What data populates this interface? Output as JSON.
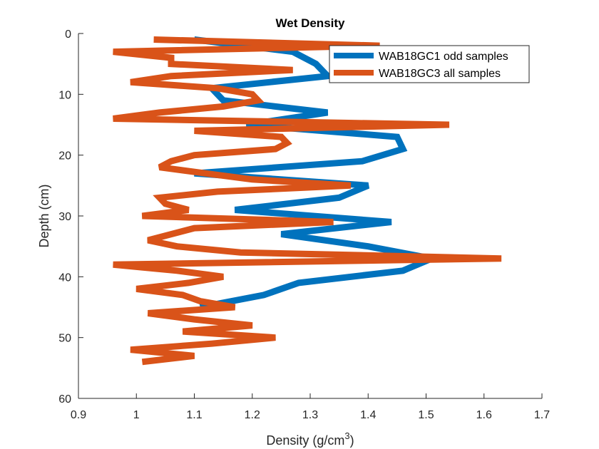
{
  "chart_data": {
    "type": "line",
    "title": "Wet Density",
    "xlabel": "Density (g/cm",
    "xlabel_sup": "3",
    "xlabel_suffix": ")",
    "ylabel": "Depth (cm)",
    "xlim": [
      0.9,
      1.7
    ],
    "ylim": [
      0,
      60
    ],
    "y_reversed": true,
    "xticks": [
      0.9,
      1.0,
      1.1,
      1.2,
      1.3,
      1.4,
      1.5,
      1.6,
      1.7
    ],
    "xtick_labels": [
      "0.9",
      "1",
      "1.1",
      "1.2",
      "1.3",
      "1.4",
      "1.5",
      "1.6",
      "1.7"
    ],
    "yticks": [
      0,
      10,
      20,
      30,
      40,
      50,
      60
    ],
    "ytick_labels": [
      "0",
      "10",
      "20",
      "30",
      "40",
      "50",
      "60"
    ],
    "grid": false,
    "legend_position": "top-right",
    "series": [
      {
        "name": "WAB18GC1 odd samples",
        "color": "#0072BD",
        "points": [
          [
            1.1,
            1
          ],
          [
            1.27,
            3
          ],
          [
            1.31,
            5
          ],
          [
            1.33,
            7
          ],
          [
            1.13,
            9
          ],
          [
            1.15,
            11
          ],
          [
            1.33,
            13
          ],
          [
            1.19,
            15
          ],
          [
            1.45,
            17
          ],
          [
            1.46,
            19
          ],
          [
            1.39,
            21
          ],
          [
            1.1,
            23
          ],
          [
            1.4,
            25
          ],
          [
            1.35,
            27
          ],
          [
            1.17,
            29
          ],
          [
            1.44,
            31
          ],
          [
            1.25,
            33
          ],
          [
            1.4,
            35
          ],
          [
            1.51,
            37
          ],
          [
            1.46,
            39
          ],
          [
            1.28,
            41
          ],
          [
            1.22,
            43
          ],
          [
            1.11,
            45
          ]
        ]
      },
      {
        "name": "WAB18GC3 all samples",
        "color": "#D95319",
        "points": [
          [
            1.03,
            1
          ],
          [
            1.42,
            2
          ],
          [
            0.96,
            3
          ],
          [
            1.06,
            4
          ],
          [
            1.06,
            5
          ],
          [
            1.27,
            6
          ],
          [
            1.06,
            7
          ],
          [
            0.99,
            8
          ],
          [
            1.14,
            9
          ],
          [
            1.2,
            10
          ],
          [
            1.21,
            11
          ],
          [
            1.15,
            12
          ],
          [
            1.04,
            13
          ],
          [
            0.96,
            14
          ],
          [
            1.54,
            15
          ],
          [
            1.1,
            16
          ],
          [
            1.25,
            17
          ],
          [
            1.26,
            18
          ],
          [
            1.24,
            19
          ],
          [
            1.1,
            20
          ],
          [
            1.06,
            21
          ],
          [
            1.04,
            22
          ],
          [
            1.12,
            23
          ],
          [
            1.2,
            24
          ],
          [
            1.37,
            25
          ],
          [
            1.14,
            26
          ],
          [
            1.04,
            27
          ],
          [
            1.05,
            28
          ],
          [
            1.09,
            29
          ],
          [
            1.01,
            30
          ],
          [
            1.34,
            31
          ],
          [
            1.1,
            32
          ],
          [
            1.06,
            33
          ],
          [
            1.02,
            34
          ],
          [
            1.07,
            35
          ],
          [
            1.18,
            36
          ],
          [
            1.63,
            37
          ],
          [
            0.96,
            38
          ],
          [
            1.07,
            39
          ],
          [
            1.15,
            40
          ],
          [
            1.09,
            41
          ],
          [
            1.0,
            42
          ],
          [
            1.08,
            43
          ],
          [
            1.11,
            44
          ],
          [
            1.17,
            45
          ],
          [
            1.02,
            46
          ],
          [
            1.1,
            47
          ],
          [
            1.2,
            48
          ],
          [
            1.08,
            49
          ],
          [
            1.24,
            50
          ],
          [
            1.13,
            51
          ],
          [
            0.99,
            52
          ],
          [
            1.1,
            53
          ],
          [
            1.01,
            54
          ]
        ]
      }
    ]
  }
}
